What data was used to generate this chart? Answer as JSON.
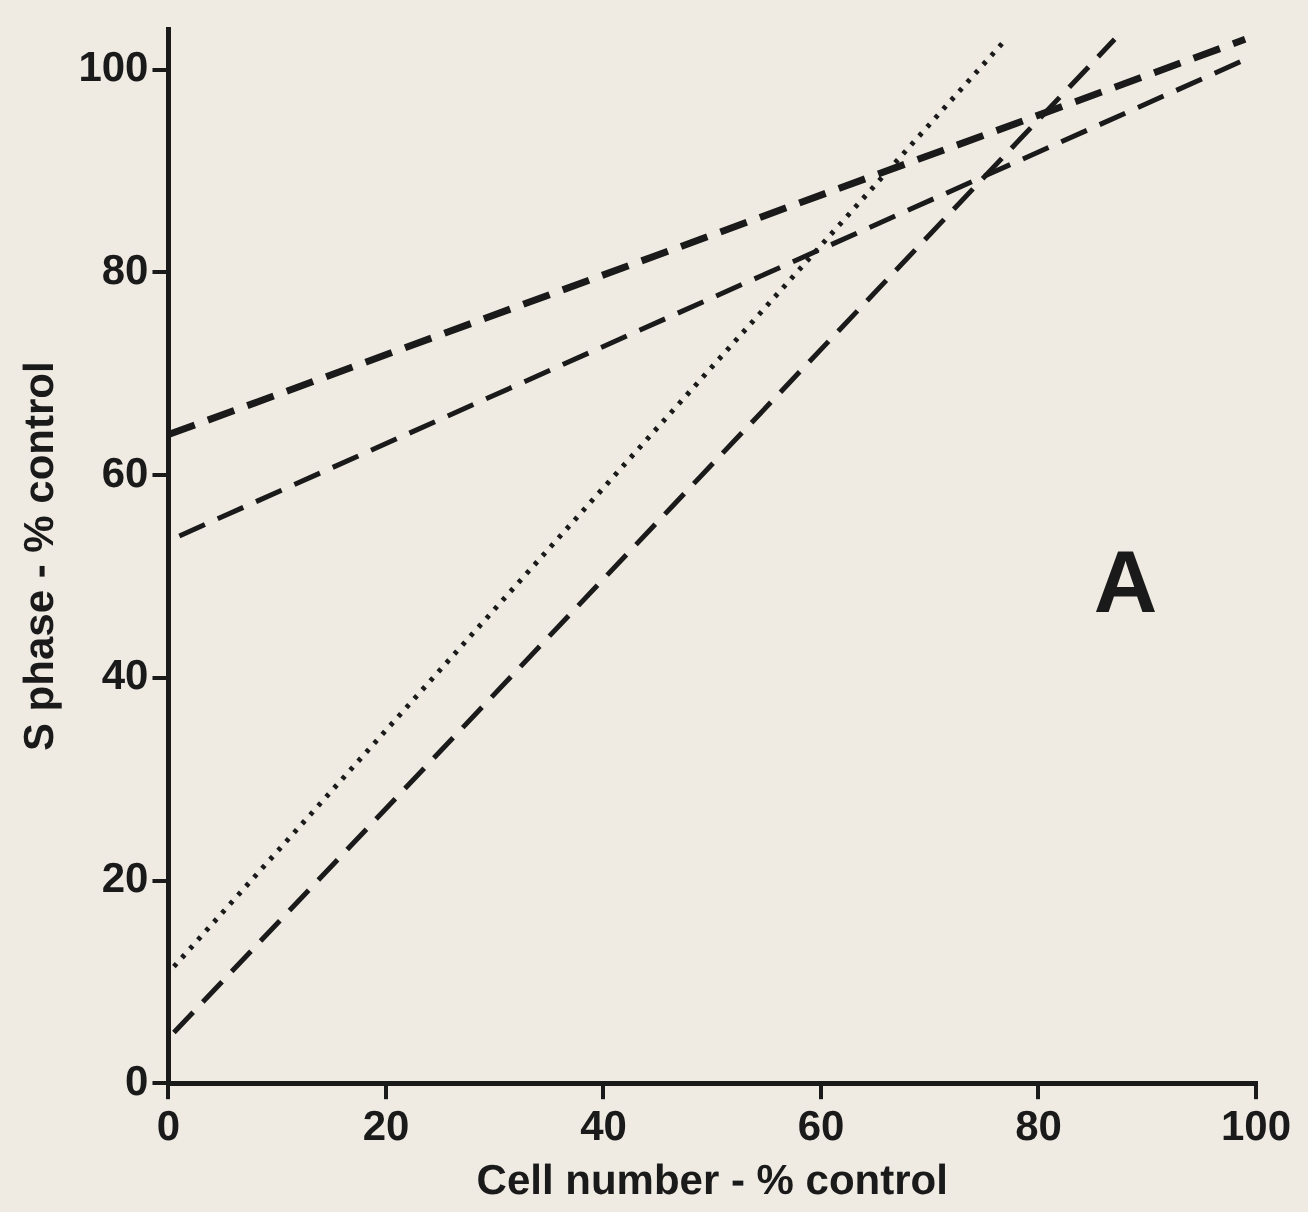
{
  "chart_data": {
    "type": "line",
    "xlabel": "Cell number - % control",
    "ylabel": "S phase - % control",
    "annotations": [
      "A"
    ],
    "xlim": [
      0,
      100
    ],
    "ylim": [
      0,
      104
    ],
    "xticks": [
      0,
      20,
      40,
      60,
      80,
      100
    ],
    "yticks": [
      0,
      20,
      40,
      60,
      80,
      100
    ],
    "grid": false,
    "legend": false,
    "marker": "none",
    "series": [
      {
        "color": "#1a1a1a",
        "line_style": "dashed",
        "x": [
          0,
          99
        ],
        "values": [
          64,
          103
        ]
      },
      {
        "color": "#1a1a1a",
        "line_style": "dashed",
        "x": [
          1,
          99
        ],
        "values": [
          54,
          101
        ]
      },
      {
        "color": "#1a1a1a",
        "line_style": "dotted",
        "x": [
          0.5,
          77
        ],
        "values": [
          11.5,
          103
        ]
      },
      {
        "color": "#1a1a1a",
        "line_style": "dashed",
        "x": [
          0.5,
          87
        ],
        "values": [
          5,
          103
        ]
      }
    ]
  }
}
